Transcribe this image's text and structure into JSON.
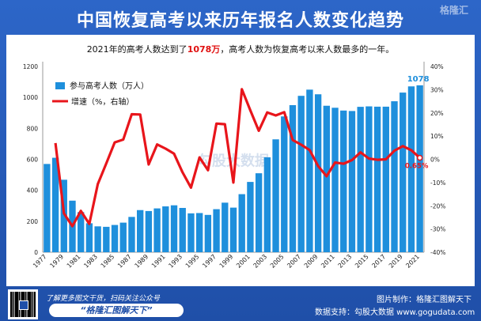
{
  "title": "中国恢复高考以来历年报名人数变化趋势",
  "subtitle": {
    "prefix": "2021年的高考人数达到了",
    "highlight": "1078万",
    "suffix": "，高考人数为恢复高考以来人数最多的一年。"
  },
  "watermark_top": "格隆汇",
  "watermark_center": "勾股大数据",
  "footer": {
    "promo_line": "了解更多图文干货，扫码关注公众号",
    "promo_badge": "“格隆汇图解天下”",
    "credit_line1": "图片制作：格隆汇图解天下",
    "credit_line2": "数据支持：勾股大数据 www.gogudata.com"
  },
  "colors": {
    "bar": "#1e8fdc",
    "line": "#e8151b",
    "frame": "#1f4fa8"
  },
  "chart_data": {
    "type": "bar",
    "categories": [
      "1977",
      "1978",
      "1979",
      "1980",
      "1981",
      "1982",
      "1983",
      "1984",
      "1985",
      "1986",
      "1987",
      "1988",
      "1989",
      "1990",
      "1991",
      "1992",
      "1993",
      "1994",
      "1995",
      "1996",
      "1997",
      "1998",
      "1999",
      "2000",
      "2001",
      "2002",
      "2003",
      "2004",
      "2005",
      "2006",
      "2007",
      "2008",
      "2009",
      "2010",
      "2011",
      "2012",
      "2013",
      "2014",
      "2015",
      "2016",
      "2017",
      "2018",
      "2019",
      "2020",
      "2021"
    ],
    "tick_labels": [
      "1977",
      "1979",
      "1981",
      "1983",
      "1985",
      "1987",
      "1989",
      "1991",
      "1993",
      "1995",
      "1997",
      "1999",
      "2001",
      "2003",
      "2005",
      "2007",
      "2009",
      "2011",
      "2013",
      "2015",
      "2017",
      "2019",
      "2021"
    ],
    "series": [
      {
        "name": "参与高考人数（万人）",
        "type": "bar",
        "axis": "left",
        "values": [
          570,
          610,
          468,
          333,
          259,
          187,
          167,
          164,
          176,
          191,
          228,
          272,
          266,
          283,
          296,
          303,
          286,
          251,
          253,
          241,
          278,
          320,
          288,
          375,
          454,
          510,
          613,
          729,
          877,
          950,
          1010,
          1050,
          1020,
          946,
          933,
          915,
          912,
          939,
          942,
          940,
          940,
          975,
          1031,
          1071,
          1078
        ]
      },
      {
        "name": "增速（%，右轴）",
        "type": "line",
        "axis": "right",
        "values": [
          null,
          7.0,
          -23.3,
          -28.8,
          -22.2,
          -27.8,
          -10.7,
          -1.8,
          7.3,
          8.5,
          19.4,
          19.3,
          -2.2,
          6.4,
          4.6,
          2.4,
          -5.6,
          -12.2,
          0.8,
          -4.7,
          15.4,
          15.1,
          -10.0,
          30.2,
          21.1,
          12.3,
          20.2,
          18.9,
          20.3,
          8.3,
          6.3,
          4.0,
          -2.9,
          -7.3,
          -1.4,
          -1.9,
          -0.3,
          3.0,
          0.3,
          -0.2,
          0.0,
          3.7,
          5.7,
          3.9,
          0.65
        ]
      }
    ],
    "data_labels": {
      "last_bar": "1078",
      "last_growth": "0.65%"
    },
    "ylim_left": [
      0,
      1200
    ],
    "yticks_left": [
      "0",
      "200",
      "400",
      "600",
      "800",
      "1000",
      "1200"
    ],
    "ylim_right": [
      -40,
      40
    ],
    "yticks_right": [
      "-40%",
      "-30%",
      "-20%",
      "-10%",
      "0%",
      "10%",
      "20%",
      "30%",
      "40%"
    ],
    "grid": false,
    "legend_position": "top-left"
  }
}
